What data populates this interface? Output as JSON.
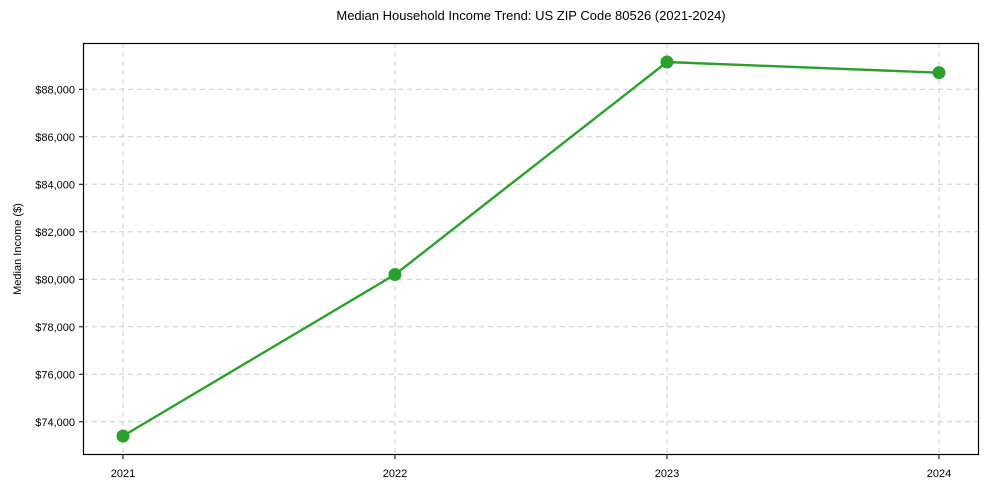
{
  "figure": {
    "background": "#ffffff"
  },
  "chart_data": {
    "type": "line",
    "title": "Median Household Income Trend: US ZIP Code 80526 (2021-2024)",
    "xlabel": "",
    "ylabel": "Median Income ($)",
    "x": [
      "2021",
      "2022",
      "2023",
      "2024"
    ],
    "series": [
      {
        "name": "Median Household Income",
        "values": [
          73400,
          80200,
          89150,
          88700
        ],
        "color": "#2ca02c",
        "marker": "circle",
        "marker_radius": 6.5,
        "line_width": 2.4
      }
    ],
    "ylim": [
      72600,
      89950
    ],
    "yticks": [
      74000,
      76000,
      78000,
      80000,
      82000,
      84000,
      86000,
      88000
    ],
    "ytick_prefix": "$",
    "grid": true,
    "grid_style": "dashed",
    "grid_color": "#cccccc",
    "axis_color": "#000000",
    "text_color": "#000000",
    "legend": "none"
  }
}
